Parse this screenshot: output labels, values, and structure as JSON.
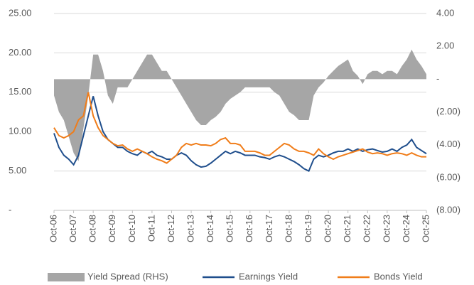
{
  "chart_data": {
    "type": "line",
    "categories": [
      "Oct-06",
      null,
      null,
      null,
      "Oct-07",
      null,
      null,
      null,
      "Oct-08",
      null,
      null,
      null,
      "Oct-09",
      null,
      null,
      null,
      "Oct-10",
      null,
      null,
      null,
      "Oct-11",
      null,
      null,
      null,
      "Oct-12",
      null,
      null,
      null,
      "Oct-13",
      null,
      null,
      null,
      "Oct-14",
      null,
      null,
      null,
      "Oct-15",
      null,
      null,
      null,
      "Oct-16",
      null,
      null,
      null,
      "Oct-17",
      null,
      null,
      null,
      "Oct-18",
      null,
      null,
      null,
      "Oct-19",
      null,
      null,
      null,
      "Oct-20",
      null,
      null,
      null,
      "Oct-21",
      null,
      null,
      null,
      "Oct-22",
      null,
      null,
      null,
      "Oct-23",
      null,
      null,
      null,
      "Oct-24",
      null,
      null,
      null,
      "Oct-25"
    ],
    "series": [
      {
        "name": "Yield Spread (RHS)",
        "type": "area",
        "axis": "y2",
        "color": "#a6a6a6",
        "values": [
          -1,
          -2,
          -2.5,
          -3.5,
          -4.5,
          -5,
          -3,
          -1,
          1.5,
          1.5,
          0.5,
          -1,
          -1.5,
          -0.5,
          -0.5,
          -0.5,
          0,
          0.5,
          1,
          1.5,
          1.5,
          1,
          0.5,
          0.5,
          0,
          -0.5,
          -1,
          -1.5,
          -2,
          -2.5,
          -2.8,
          -2.8,
          -2.5,
          -2.3,
          -2,
          -1.5,
          -1.2,
          -1,
          -0.8,
          -0.5,
          -0.5,
          -0.5,
          -0.5,
          -0.5,
          -0.5,
          -0.8,
          -1,
          -1.5,
          -2,
          -2.2,
          -2.5,
          -2.5,
          -2.5,
          -1,
          -0.5,
          -0.2,
          0.2,
          0.5,
          0.8,
          1,
          1.2,
          0.5,
          0.2,
          -0.3,
          0.3,
          0.5,
          0.5,
          0.3,
          0.5,
          0.5,
          0.3,
          0.8,
          1.2,
          1.8,
          1.2,
          0.8,
          0.3
        ]
      },
      {
        "name": "Earnings Yield",
        "type": "line",
        "color": "#1f4e8c",
        "values": [
          9.8,
          8,
          7,
          6.5,
          5.8,
          7,
          9.5,
          12,
          14.5,
          12,
          10,
          9,
          8.5,
          8,
          8,
          7.5,
          7.2,
          7,
          7.5,
          7.2,
          7.5,
          7,
          6.8,
          6.5,
          6.5,
          7,
          7.3,
          7,
          6.3,
          5.8,
          5.5,
          5.6,
          6,
          6.5,
          7,
          7.5,
          7.2,
          7.5,
          7.3,
          7,
          7,
          7,
          6.8,
          6.7,
          6.5,
          6.8,
          7,
          6.8,
          6.5,
          6.2,
          5.8,
          5.3,
          5,
          6.5,
          7,
          6.8,
          7,
          7.3,
          7.5,
          7.5,
          7.8,
          7.5,
          7.8,
          7.5,
          7.7,
          7.8,
          7.6,
          7.4,
          7.5,
          7.8,
          7.5,
          8,
          8.3,
          9,
          8,
          7.6,
          7.2
        ]
      },
      {
        "name": "Bonds Yield",
        "type": "line",
        "color": "#f07d1a",
        "values": [
          10.5,
          9.5,
          9.2,
          9.5,
          10,
          11.5,
          12,
          15,
          12,
          10.5,
          9.5,
          9,
          8.5,
          8.2,
          8.3,
          7.8,
          7.5,
          7.8,
          7.5,
          7.2,
          6.8,
          6.5,
          6.3,
          6,
          6.5,
          7,
          8,
          8.5,
          8.3,
          8.5,
          8.3,
          8.3,
          8.2,
          8.5,
          9,
          9.2,
          8.5,
          8.5,
          8.3,
          7.5,
          7.5,
          7.5,
          7.3,
          7,
          7,
          7.5,
          8,
          8.5,
          8.3,
          7.8,
          7.5,
          7.5,
          7.3,
          7,
          7.8,
          7.2,
          6.8,
          6.5,
          6.8,
          7,
          7.2,
          7.4,
          7.6,
          7.8,
          7.4,
          7.2,
          7.3,
          7.2,
          7,
          7.2,
          7.3,
          7.2,
          7,
          7.3,
          7,
          6.8,
          6.8
        ]
      }
    ],
    "ylim": [
      0,
      25
    ],
    "yticks": [
      {
        "value": 0,
        "label": "-"
      },
      {
        "value": 5,
        "label": "5.00"
      },
      {
        "value": 10,
        "label": "10.00"
      },
      {
        "value": 15,
        "label": "15.00"
      },
      {
        "value": 20,
        "label": "20.00"
      },
      {
        "value": 25,
        "label": "25.00"
      }
    ],
    "y2lim": [
      -8,
      4
    ],
    "y2ticks": [
      {
        "value": -8,
        "label": "(8.00)"
      },
      {
        "value": -6,
        "label": "(6.00)"
      },
      {
        "value": -4,
        "label": "(4.00)"
      },
      {
        "value": -2,
        "label": "(2.00)"
      },
      {
        "value": 0,
        "label": "-"
      },
      {
        "value": 2,
        "label": "2.00"
      },
      {
        "value": 4,
        "label": "4.00"
      }
    ],
    "grid": true
  }
}
